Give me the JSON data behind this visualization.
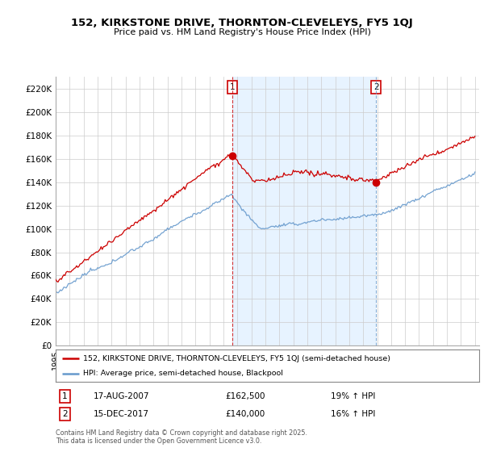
{
  "title": "152, KIRKSTONE DRIVE, THORNTON-CLEVELEYS, FY5 1QJ",
  "subtitle": "Price paid vs. HM Land Registry's House Price Index (HPI)",
  "legend_line1": "152, KIRKSTONE DRIVE, THORNTON-CLEVELEYS, FY5 1QJ (semi-detached house)",
  "legend_line2": "HPI: Average price, semi-detached house, Blackpool",
  "purchase1_date": "17-AUG-2007",
  "purchase1_price": 162500,
  "purchase1_label": "19% ↑ HPI",
  "purchase2_date": "15-DEC-2017",
  "purchase2_price": 140000,
  "purchase2_label": "16% ↑ HPI",
  "footer": "Contains HM Land Registry data © Crown copyright and database right 2025.\nThis data is licensed under the Open Government Licence v3.0.",
  "red_color": "#cc0000",
  "blue_color": "#6699cc",
  "shade_color": "#ddeeff",
  "background_color": "#ffffff",
  "grid_color": "#cccccc",
  "ylim": [
    0,
    230000
  ],
  "yticks": [
    0,
    20000,
    40000,
    60000,
    80000,
    100000,
    120000,
    140000,
    160000,
    180000,
    200000,
    220000
  ],
  "sale1_year": 2007.625,
  "sale2_year": 2017.917,
  "sale1_price": 162500,
  "sale2_price": 140000,
  "year_start": 1995,
  "year_end": 2025
}
